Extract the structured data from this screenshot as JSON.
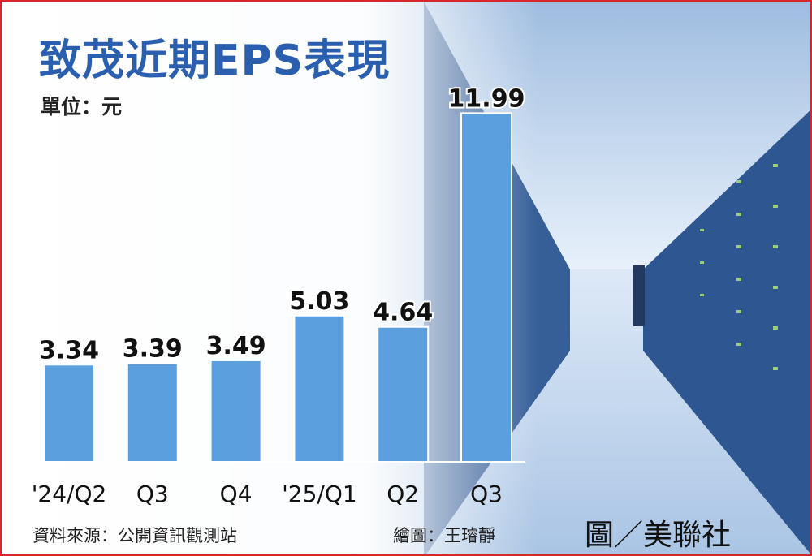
{
  "title": "致茂近期EPS表現",
  "unit": "單位：元",
  "source": "資料來源：公開資訊觀測站",
  "artist": "繪圖：王璿靜",
  "credit": "圖／美聯社",
  "colors": {
    "bar": "#5b9fdf",
    "title": "#2a5fb0",
    "border": "#d9262b"
  },
  "chart_data": {
    "type": "bar",
    "title": "致茂近期EPS表現",
    "ylabel": "單位：元",
    "xlabel": "",
    "categories": [
      "'24/Q2",
      "Q3",
      "Q4",
      "'25/Q1",
      "Q2",
      "Q3"
    ],
    "values": [
      3.34,
      3.39,
      3.49,
      5.03,
      4.64,
      11.99
    ],
    "value_labels": [
      "3.34",
      "3.39",
      "3.49",
      "5.03",
      "4.64",
      "11.99"
    ],
    "ylim": [
      0,
      12
    ],
    "grid": false,
    "legend": "none"
  }
}
